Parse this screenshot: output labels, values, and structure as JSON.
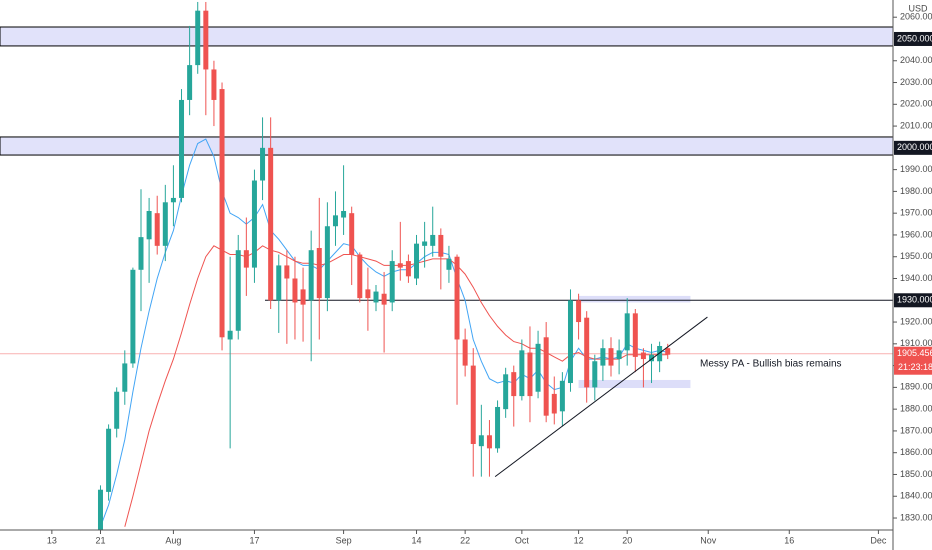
{
  "chart_data": {
    "type": "candlestick",
    "currency": "USD",
    "xlim": [
      -6.4,
      103.8
    ],
    "ylim": [
      1824.5,
      2067.9
    ],
    "grid": false,
    "up_color": "#26a69a",
    "down_color": "#ef5350",
    "xticks": [
      {
        "value": 0,
        "label": "13"
      },
      {
        "value": 6,
        "label": "21"
      },
      {
        "value": 15,
        "label": "Aug"
      },
      {
        "value": 25,
        "label": "17"
      },
      {
        "value": 36,
        "label": "Sep"
      },
      {
        "value": 45,
        "label": "14"
      },
      {
        "value": 51,
        "label": "22"
      },
      {
        "value": 58,
        "label": "Oct"
      },
      {
        "value": 65,
        "label": "12"
      },
      {
        "value": 71,
        "label": "20"
      },
      {
        "value": 81,
        "label": "Nov"
      },
      {
        "value": 91,
        "label": "16"
      },
      {
        "value": 102,
        "label": "Dec"
      }
    ],
    "yticks": [
      {
        "value": 1830,
        "label": "1830.000"
      },
      {
        "value": 1840,
        "label": "1840.000"
      },
      {
        "value": 1850,
        "label": "1850.000"
      },
      {
        "value": 1860,
        "label": "1860.000"
      },
      {
        "value": 1870,
        "label": "1870.000"
      },
      {
        "value": 1880,
        "label": "1880.000"
      },
      {
        "value": 1890,
        "label": "1890.000"
      },
      {
        "value": 1900,
        "label": "1900.000"
      },
      {
        "value": 1910,
        "label": "1910.000"
      },
      {
        "value": 1920,
        "label": "1920.000"
      },
      {
        "value": 1940,
        "label": "1940.000"
      },
      {
        "value": 1950,
        "label": "1950.000"
      },
      {
        "value": 1960,
        "label": "1960.000"
      },
      {
        "value": 1970,
        "label": "1970.000"
      },
      {
        "value": 1980,
        "label": "1980.000"
      },
      {
        "value": 1990,
        "label": "1990.000"
      },
      {
        "value": 2010,
        "label": "2010.000"
      },
      {
        "value": 2020,
        "label": "2020.000"
      },
      {
        "value": 2030,
        "label": "2030.000"
      },
      {
        "value": 2040,
        "label": "2040.000"
      },
      {
        "value": 2060,
        "label": "2060.000"
      }
    ],
    "candles": {
      "x": [
        6,
        7,
        8,
        9,
        10,
        11,
        12,
        13,
        14,
        15,
        16,
        17,
        18,
        19,
        20,
        21,
        22,
        23,
        24,
        25,
        26,
        27,
        28,
        29,
        30,
        31,
        32,
        33,
        34,
        35,
        36,
        37,
        38,
        39,
        40,
        41,
        42,
        43,
        44,
        45,
        46,
        47,
        48,
        49,
        50,
        51,
        52,
        53,
        54,
        55,
        56,
        57,
        58,
        59,
        60,
        61,
        62,
        63,
        64,
        65,
        66,
        67,
        68,
        69,
        70,
        71,
        72,
        73,
        74,
        75,
        76
      ],
      "open": [
        1820,
        1842,
        1871,
        1888,
        1901,
        1944,
        1958,
        1970,
        1955,
        1975,
        1977,
        2022,
        2038,
        2063,
        2036,
        2027,
        1912,
        1916,
        1953,
        1945,
        1985,
        2000,
        1930,
        1946,
        1940,
        1935,
        1930,
        1954,
        1931,
        1964,
        1968,
        1970,
        1951,
        1935,
        1929,
        1933,
        1929,
        1947,
        1948,
        1940,
        1955,
        1955,
        1960,
        1944,
        1950,
        1912,
        1900,
        1863,
        1868,
        1862,
        1880,
        1897,
        1886,
        1906,
        1888,
        1913,
        1887,
        1879,
        1892,
        1930,
        1922,
        1890,
        1900,
        1908,
        1903,
        1907,
        1924,
        1906,
        1902,
        1902,
        1908
      ],
      "high": [
        1845,
        1873,
        1890,
        1907,
        1945,
        1981,
        1977,
        1978,
        1983,
        1992,
        2027,
        2056,
        2067,
        2067,
        2040,
        2030,
        1950,
        1960,
        1968,
        1990,
        2014,
        2014,
        1951,
        1953,
        1950,
        1945,
        1962,
        1977,
        1975,
        1980,
        1992,
        1973,
        1952,
        1945,
        1937,
        1943,
        1953,
        1966,
        1951,
        1960,
        1966,
        1973,
        1963,
        1955,
        1951,
        1917,
        1908,
        1882,
        1875,
        1884,
        1899,
        1900,
        1912,
        1918,
        1916,
        1920,
        1895,
        1897,
        1935,
        1933,
        1925,
        1905,
        1912,
        1913,
        1912,
        1931,
        1926,
        1908,
        1910,
        1911,
        1910
      ],
      "low": [
        1818,
        1838,
        1867,
        1882,
        1899,
        1925,
        1938,
        1951,
        1948,
        1964,
        1975,
        2015,
        2034,
        2015,
        2010,
        1907,
        1862,
        1912,
        1932,
        1938,
        1976,
        1926,
        1915,
        1910,
        1912,
        1911,
        1902,
        1912,
        1925,
        1955,
        1960,
        1937,
        1929,
        1916,
        1925,
        1906,
        1925,
        1939,
        1938,
        1937,
        1945,
        1950,
        1935,
        1938,
        1882,
        1895,
        1849,
        1849,
        1849,
        1860,
        1876,
        1872,
        1884,
        1874,
        1885,
        1874,
        1873,
        1872,
        1888,
        1912,
        1883,
        1884,
        1893,
        1895,
        1896,
        1900,
        1897,
        1890,
        1892,
        1897,
        1903
      ],
      "close": [
        1843,
        1871,
        1888,
        1901,
        1944,
        1959,
        1971,
        1955,
        1975,
        1977,
        2022,
        2038,
        2063,
        2036,
        2022,
        1913,
        1916,
        1953,
        1945,
        1985,
        2000,
        1930,
        1946,
        1940,
        1929,
        1928,
        1953,
        1931,
        1964,
        1969,
        1971,
        1951,
        1931,
        1931,
        1934,
        1928,
        1948,
        1945,
        1941,
        1956,
        1957,
        1960,
        1950,
        1949,
        1912,
        1900,
        1864,
        1868,
        1862,
        1881,
        1896,
        1886,
        1907,
        1886,
        1910,
        1877,
        1878,
        1893,
        1930,
        1920,
        1890,
        1902,
        1908,
        1900,
        1907,
        1924,
        1904,
        1903,
        1905,
        1909,
        1905
      ]
    },
    "series": [
      {
        "color": "#42a5f5",
        "values": [
          1826,
          1836,
          1850,
          1866,
          1888,
          1908,
          1925,
          1940,
          1952,
          1962,
          1978,
          1992,
          2002,
          2004,
          1996,
          1980,
          1970,
          1968,
          1965,
          1968,
          1974,
          1962,
          1958,
          1953,
          1948,
          1946,
          1946,
          1944,
          1948,
          1952,
          1956,
          1955,
          1950,
          1946,
          1943,
          1941,
          1943,
          1944,
          1944,
          1947,
          1950,
          1952,
          1952,
          1951,
          1940,
          1930,
          1912,
          1902,
          1894,
          1892,
          1893,
          1892,
          1896,
          1894,
          1898,
          1892,
          1889,
          1890,
          1902,
          1908,
          1903,
          1903,
          1904,
          1903,
          1904,
          1910,
          1908,
          1907,
          1906,
          1907,
          1906
        ]
      },
      {
        "color": "#ef5350",
        "values": [
          null,
          null,
          null,
          1826,
          1840,
          1855,
          1870,
          1882,
          1893,
          1903,
          1915,
          1928,
          1940,
          1950,
          1955,
          1953,
          1951,
          1951,
          1950,
          1952,
          1955,
          1953,
          1952,
          1950,
          1948,
          1947,
          1947,
          1946,
          1947,
          1949,
          1951,
          1951,
          1950,
          1949,
          1948,
          1946,
          1946,
          1946,
          1946,
          1947,
          1948,
          1949,
          1949,
          1949,
          1946,
          1942,
          1936,
          1929,
          1923,
          1918,
          1914,
          1911,
          1910,
          1908,
          1908,
          1906,
          1904,
          1902,
          1905,
          1906,
          1904,
          1903,
          1903,
          1903,
          1903,
          1905,
          1905,
          1905,
          1905,
          1905,
          1905
        ]
      }
    ],
    "zones": [
      {
        "y": [
          2046.8,
          2055.5
        ],
        "label": {
          "value": 2050,
          "label": "2050.000"
        }
      },
      {
        "y": [
          1996.7,
          2005
        ],
        "label": {
          "value": 2000,
          "label": "2000.000"
        }
      }
    ],
    "small_zones": [
      {
        "x": [
          65,
          78.8
        ],
        "y": [
          1929,
          1932
        ]
      },
      {
        "x": [
          65,
          78.8
        ],
        "y": [
          1889.7,
          1893.4
        ]
      }
    ],
    "level": {
      "value": 1930,
      "label": "1930.000",
      "x_start": 26.3
    },
    "trendline": {
      "x": [
        54.7,
        80.9
      ],
      "y": [
        1849,
        1922.3
      ]
    },
    "note": "Messy PA - Bullish bias remains",
    "last_price": {
      "value": 1905.456,
      "label": "1905.456",
      "countdown": "21:23:18"
    }
  }
}
